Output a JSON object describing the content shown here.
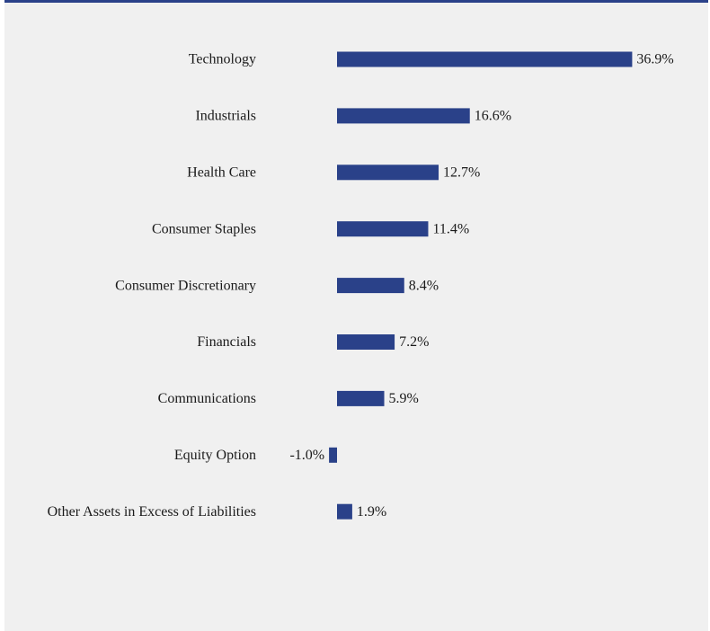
{
  "chart_data": {
    "type": "bar",
    "orientation": "horizontal",
    "title": "",
    "xlabel": "",
    "ylabel": "",
    "grid": false,
    "categories": [
      "Technology",
      "Industrials",
      "Health Care",
      "Consumer Staples",
      "Consumer Discretionary",
      "Financials",
      "Communications",
      "Equity Option",
      "Other Assets in Excess of Liabilities"
    ],
    "values": [
      36.9,
      16.6,
      12.7,
      11.4,
      8.4,
      7.2,
      5.9,
      -1.0,
      1.9
    ],
    "value_labels": [
      "36.9%",
      "16.6%",
      "12.7%",
      "11.4%",
      "8.4%",
      "7.2%",
      "5.9%",
      "-1.0%",
      "1.9%"
    ],
    "xlim": [
      -1.0,
      36.9
    ],
    "bar_color": "#2a4189",
    "background_color": "#f0f0f0"
  }
}
